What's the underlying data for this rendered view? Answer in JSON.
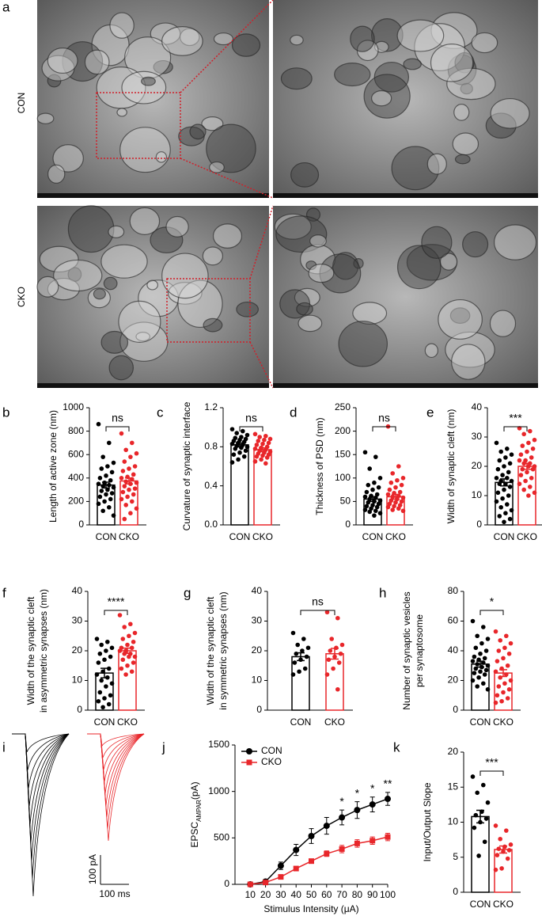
{
  "micrograph": {
    "label": "a",
    "rows": [
      "CON",
      "CKO"
    ]
  },
  "traces": {
    "label": "i",
    "scale_y": "100 pA",
    "scale_x": "100 ms"
  },
  "chart_data": [
    {
      "type": "bar",
      "label": "b",
      "ylabel": [
        "Length of active zone (nm)"
      ],
      "ylim": [
        0,
        1000
      ],
      "yticks": [
        0,
        200,
        400,
        600,
        800,
        1000
      ],
      "sig": "ns",
      "series": [
        {
          "name": "CON",
          "color": "#000000",
          "value": 340,
          "error": 25,
          "points": [
            860,
            700,
            580,
            530,
            500,
            480,
            450,
            420,
            400,
            380,
            360,
            350,
            340,
            330,
            320,
            300,
            290,
            270,
            260,
            240,
            220,
            200,
            180,
            150,
            120,
            80
          ]
        },
        {
          "name": "CKO",
          "color": "#e8262a",
          "value": 375,
          "error": 25,
          "points": [
            780,
            700,
            640,
            610,
            580,
            540,
            500,
            480,
            460,
            430,
            410,
            400,
            390,
            370,
            360,
            350,
            330,
            310,
            300,
            280,
            260,
            240,
            220,
            200,
            170,
            140,
            100,
            50
          ]
        }
      ]
    },
    {
      "type": "bar",
      "label": "c",
      "ylabel": [
        "Curvature of synaptic interface"
      ],
      "ylim": [
        0,
        1.2
      ],
      "yticks": [
        {
          "value": 0,
          "label": "0.0"
        },
        0.4,
        0.8,
        1.2
      ],
      "sig": "ns",
      "series": [
        {
          "name": "CON",
          "color": "#000000",
          "value": 0.82,
          "error": 0.02,
          "points": [
            0.98,
            0.96,
            0.94,
            0.92,
            0.9,
            0.89,
            0.88,
            0.87,
            0.86,
            0.85,
            0.84,
            0.83,
            0.82,
            0.81,
            0.8,
            0.79,
            0.78,
            0.76,
            0.74,
            0.72,
            0.7,
            0.67,
            0.64
          ]
        },
        {
          "name": "CKO",
          "color": "#e8262a",
          "value": 0.77,
          "error": 0.02,
          "points": [
            0.93,
            0.91,
            0.9,
            0.88,
            0.87,
            0.86,
            0.84,
            0.83,
            0.82,
            0.8,
            0.79,
            0.78,
            0.77,
            0.76,
            0.75,
            0.74,
            0.73,
            0.72,
            0.71,
            0.7,
            0.69,
            0.67,
            0.65,
            0.63
          ]
        }
      ]
    },
    {
      "type": "bar",
      "label": "d",
      "ylabel": [
        "Thickness of PSD (nm)"
      ],
      "ylim": [
        0,
        250
      ],
      "yticks": [
        0,
        50,
        100,
        150,
        200,
        250
      ],
      "sig": "ns",
      "series": [
        {
          "name": "CON",
          "color": "#000000",
          "value": 55,
          "error": 5,
          "points": [
            155,
            145,
            120,
            100,
            90,
            85,
            80,
            75,
            70,
            65,
            62,
            60,
            58,
            55,
            52,
            50,
            48,
            45,
            42,
            40,
            38,
            35,
            32,
            30,
            28,
            25,
            20
          ]
        },
        {
          "name": "CKO",
          "color": "#e8262a",
          "value": 60,
          "error": 5,
          "points": [
            210,
            125,
            110,
            100,
            95,
            90,
            85,
            80,
            75,
            70,
            68,
            65,
            62,
            60,
            58,
            55,
            52,
            50,
            48,
            45,
            42,
            40,
            38,
            35,
            32,
            30
          ]
        }
      ]
    },
    {
      "type": "bar",
      "label": "e",
      "ylabel": [
        "Width of synaptic cleft (nm)"
      ],
      "ylim": [
        0,
        40
      ],
      "yticks": [
        0,
        10,
        20,
        30,
        40
      ],
      "sig": "***",
      "series": [
        {
          "name": "CON",
          "color": "#000000",
          "value": 14.5,
          "error": 1.2,
          "points": [
            28,
            26,
            25,
            24,
            23,
            22,
            21,
            20,
            19,
            18,
            17,
            16,
            16,
            15,
            15,
            14,
            14,
            13,
            12,
            11,
            10,
            9,
            8,
            7,
            6,
            5,
            4,
            3,
            2,
            1
          ]
        },
        {
          "name": "CKO",
          "color": "#e8262a",
          "value": 20,
          "error": 1,
          "points": [
            33,
            32,
            31,
            29,
            28,
            27,
            26,
            25,
            24,
            23,
            22,
            22,
            21,
            21,
            20,
            20,
            19,
            19,
            18,
            17,
            16,
            15,
            14,
            13,
            12,
            11,
            10
          ]
        }
      ]
    },
    {
      "type": "bar",
      "label": "f",
      "ylabel": [
        "Width of the synaptic cleft",
        "in asymmetric synapses (nm)"
      ],
      "ylim": [
        0,
        40
      ],
      "yticks": [
        0,
        10,
        20,
        30,
        40
      ],
      "sig": "****",
      "series": [
        {
          "name": "CON",
          "color": "#000000",
          "value": 12.5,
          "error": 1.6,
          "points": [
            24,
            23,
            22,
            21,
            20,
            19,
            18,
            17,
            16,
            14,
            13,
            12,
            11,
            10,
            9,
            8,
            6,
            5,
            4,
            3,
            2,
            1
          ]
        },
        {
          "name": "CKO",
          "color": "#e8262a",
          "value": 20,
          "error": 0.9,
          "points": [
            32,
            29,
            28,
            26,
            25,
            24,
            23,
            22,
            21,
            21,
            20,
            20,
            19,
            19,
            18,
            18,
            17,
            16,
            15,
            14,
            13,
            12
          ]
        }
      ]
    },
    {
      "type": "bar",
      "label": "g",
      "ylabel": [
        "Width of the synaptic cleft",
        "in symmetric synapses (nm)"
      ],
      "ylim": [
        0,
        40
      ],
      "yticks": [
        0,
        10,
        20,
        30,
        40
      ],
      "sig": "ns",
      "series": [
        {
          "name": "CON",
          "color": "#000000",
          "value": 18,
          "error": 1.3,
          "points": [
            26,
            24,
            22,
            21,
            20,
            19,
            18,
            17,
            16,
            14,
            13,
            12
          ]
        },
        {
          "name": "CKO",
          "color": "#e8262a",
          "value": 19,
          "error": 1.8,
          "points": [
            33,
            31,
            24,
            22,
            21,
            20,
            19,
            18,
            17,
            16,
            14,
            12,
            7
          ]
        }
      ]
    },
    {
      "type": "bar",
      "label": "h",
      "ylabel": [
        "Number of synaptic vesicles",
        "per synaptosome"
      ],
      "ylim": [
        0,
        80
      ],
      "yticks": [
        0,
        20,
        40,
        60,
        80
      ],
      "sig": "*",
      "series": [
        {
          "name": "CON",
          "color": "#000000",
          "value": 31,
          "error": 2,
          "points": [
            60,
            56,
            50,
            48,
            45,
            42,
            40,
            38,
            36,
            35,
            34,
            33,
            32,
            31,
            30,
            29,
            28,
            27,
            26,
            25,
            24,
            22,
            20,
            18,
            16,
            14
          ]
        },
        {
          "name": "CKO",
          "color": "#e8262a",
          "value": 25,
          "error": 2.3,
          "points": [
            53,
            50,
            47,
            45,
            42,
            40,
            38,
            35,
            33,
            30,
            28,
            26,
            24,
            22,
            20,
            18,
            16,
            14,
            12,
            10,
            8,
            6,
            5
          ]
        }
      ]
    },
    {
      "type": "line",
      "label": "j",
      "ylabel_main": "EPSC",
      "ylabel_sub": "AMPAR",
      "ylabel_unit": "(pA)",
      "xlabel": "Stimulus Intensity (μA)",
      "x": [
        10,
        20,
        30,
        40,
        50,
        60,
        70,
        80,
        90,
        100
      ],
      "xlim": [
        0,
        100
      ],
      "xticks": [
        10,
        20,
        30,
        40,
        50,
        60,
        70,
        80,
        90,
        100
      ],
      "ylim": [
        0,
        1500
      ],
      "yticks": [
        0,
        500,
        1000,
        1500
      ],
      "series": [
        {
          "name": "CON",
          "color": "#000000",
          "marker": "circle",
          "values": [
            0,
            30,
            200,
            370,
            520,
            630,
            720,
            800,
            860,
            920
          ],
          "errors": [
            10,
            20,
            40,
            60,
            80,
            90,
            80,
            90,
            80,
            70
          ]
        },
        {
          "name": "CKO",
          "color": "#e8262a",
          "marker": "square",
          "values": [
            0,
            20,
            80,
            170,
            250,
            330,
            380,
            440,
            470,
            510
          ],
          "errors": [
            10,
            10,
            15,
            20,
            20,
            30,
            40,
            40,
            40,
            40
          ]
        }
      ],
      "annotations": [
        {
          "x": 70,
          "text": "*"
        },
        {
          "x": 80,
          "text": "*"
        },
        {
          "x": 90,
          "text": "*"
        },
        {
          "x": 100,
          "text": "**"
        }
      ]
    },
    {
      "type": "bar",
      "label": "k",
      "ylabel": [
        "Input/Output Slope"
      ],
      "ylim": [
        0,
        20
      ],
      "yticks": [
        0,
        5,
        10,
        15,
        20
      ],
      "sig": "***",
      "series": [
        {
          "name": "CON",
          "color": "#000000",
          "value": 10.8,
          "error": 0.9,
          "points": [
            16.5,
            15.3,
            14.2,
            12.8,
            11.5,
            11,
            10.5,
            10,
            9.2,
            7.2,
            5.2
          ]
        },
        {
          "name": "CKO",
          "color": "#e8262a",
          "value": 6.1,
          "error": 0.5,
          "points": [
            9.5,
            8.8,
            7.6,
            6.8,
            6.5,
            6.2,
            6,
            5.8,
            5.3,
            4.8,
            3.4,
            3.2
          ]
        }
      ]
    }
  ]
}
